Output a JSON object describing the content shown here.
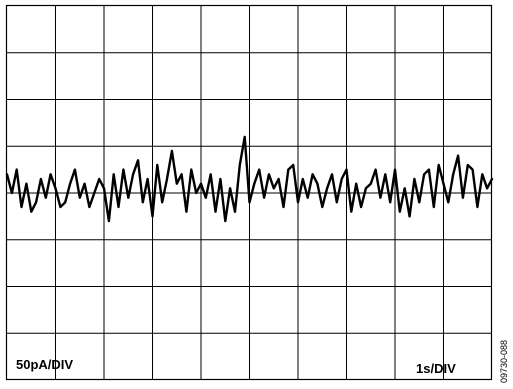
{
  "chart_data": {
    "type": "line",
    "title": "",
    "xlabel": "",
    "ylabel": "",
    "grid": true,
    "x_divisions": 10,
    "y_divisions": 8,
    "x_scale_label": "1s/DIV",
    "y_scale_label": "50pA/DIV",
    "figure_id": "09730-088",
    "x_unit_per_div": 1,
    "y_unit_per_div": 50,
    "xlim": [
      0,
      10
    ],
    "ylim": [
      -200,
      200
    ],
    "series": [
      {
        "x": [
          0.0,
          0.1,
          0.2,
          0.3,
          0.4,
          0.5,
          0.6,
          0.7,
          0.8,
          0.9,
          1.0,
          1.1,
          1.2,
          1.3,
          1.4,
          1.5,
          1.6,
          1.7,
          1.8,
          1.9,
          2.0,
          2.1,
          2.2,
          2.3,
          2.4,
          2.5,
          2.6,
          2.7,
          2.8,
          2.9,
          3.0,
          3.1,
          3.2,
          3.3,
          3.4,
          3.5,
          3.6,
          3.7,
          3.8,
          3.9,
          4.0,
          4.1,
          4.2,
          4.3,
          4.4,
          4.5,
          4.6,
          4.7,
          4.8,
          4.9,
          5.0,
          5.1,
          5.2,
          5.3,
          5.4,
          5.5,
          5.6,
          5.7,
          5.8,
          5.9,
          6.0,
          6.1,
          6.2,
          6.3,
          6.4,
          6.5,
          6.6,
          6.7,
          6.8,
          6.9,
          7.0,
          7.1,
          7.2,
          7.3,
          7.4,
          7.5,
          7.6,
          7.7,
          7.8,
          7.9,
          8.0,
          8.1,
          8.2,
          8.3,
          8.4,
          8.5,
          8.6,
          8.7,
          8.8,
          8.9,
          9.0,
          9.1,
          9.2,
          9.3,
          9.4,
          9.5,
          9.6,
          9.7,
          9.8,
          9.9,
          10.0
        ],
        "y": [
          20,
          0,
          25,
          -15,
          10,
          -20,
          -10,
          15,
          -5,
          20,
          5,
          -15,
          -10,
          10,
          25,
          -5,
          10,
          -15,
          0,
          15,
          5,
          -30,
          20,
          -15,
          25,
          -5,
          20,
          35,
          -10,
          15,
          -25,
          30,
          -10,
          15,
          45,
          10,
          20,
          -20,
          25,
          0,
          10,
          -5,
          20,
          -20,
          15,
          -30,
          5,
          -20,
          30,
          60,
          -10,
          10,
          25,
          -5,
          20,
          5,
          15,
          -15,
          25,
          30,
          -10,
          15,
          -5,
          20,
          10,
          -15,
          5,
          20,
          -10,
          15,
          25,
          -20,
          10,
          -15,
          5,
          10,
          25,
          -5,
          20,
          -10,
          25,
          -20,
          5,
          -25,
          15,
          -10,
          20,
          25,
          -15,
          30,
          10,
          -10,
          20,
          40,
          -5,
          30,
          25,
          -15,
          20,
          5,
          15
        ]
      }
    ]
  }
}
